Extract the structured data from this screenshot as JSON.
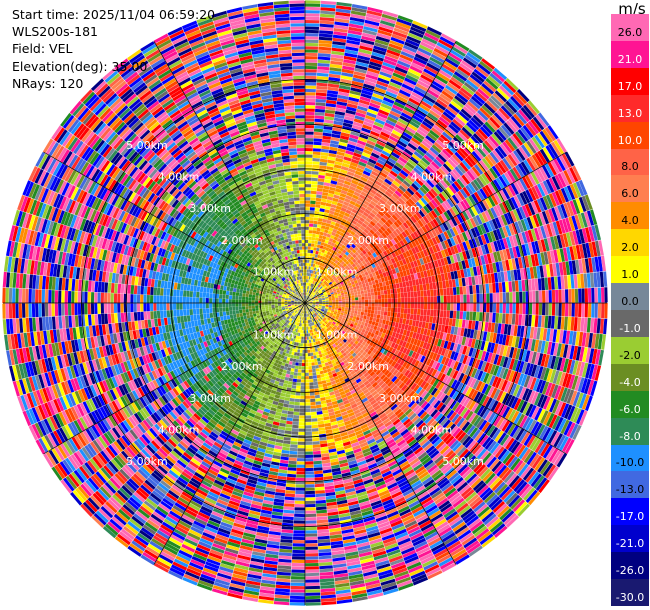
{
  "header": {
    "start_time": "Start time: 2025/11/04 06:59:20",
    "instrument": "WLS200s-181",
    "field": "Field: VEL",
    "elevation": "Elevation(deg): 35.00",
    "nrays": "NRays: 120"
  },
  "colorbar": {
    "unit": "m/s",
    "labels": [
      "26.0",
      "21.0",
      "17.0",
      "13.0",
      "10.0",
      "8.0",
      "6.0",
      "4.0",
      "2.0",
      "1.0",
      "0.0",
      "-1.0",
      "-2.0",
      "-4.0",
      "-6.0",
      "-8.0",
      "-10.0",
      "-13.0",
      "-17.0",
      "-21.0",
      "-26.0",
      "-30.0"
    ],
    "colors": [
      "#ff69b4",
      "#ff1493",
      "#ff0000",
      "#ff2a2a",
      "#ff4500",
      "#ff6347",
      "#ff7f50",
      "#ff8c00",
      "#ffd700",
      "#ffff00",
      "#778899",
      "#696969",
      "#9acd32",
      "#6b8e23",
      "#228b22",
      "#2e8b57",
      "#1e90ff",
      "#4169e1",
      "#0000ff",
      "#0000cd",
      "#000080",
      "#191970"
    ]
  },
  "chart_data": {
    "type": "heatmap",
    "subtype": "polar-ppi",
    "field": "VEL",
    "unit": "m/s",
    "nrays": 120,
    "elevation_deg": 35.0,
    "max_range_km": 5.0,
    "range_ring_labels": [
      "1.00km",
      "1.00km",
      "1.00km",
      "1.00km",
      "2.00km",
      "2.00km",
      "2.00km",
      "2.00km",
      "3.00km",
      "3.00km",
      "3.00km",
      "3.00km",
      "4.00km",
      "4.00km",
      "4.00km",
      "4.00km",
      "5.00km",
      "5.00km",
      "5.00km",
      "5.00km"
    ],
    "range_rings_km": [
      1,
      2,
      3,
      4,
      5
    ],
    "color_levels": [
      26,
      21,
      17,
      13,
      10,
      8,
      6,
      4,
      2,
      1,
      0,
      -1,
      -2,
      -4,
      -6,
      -8,
      -10,
      -13,
      -17,
      -21,
      -26,
      -30
    ],
    "pattern": "coherent dipole within ~2 km: yellow/red (positive) to the east, green/blue (negative) to the west; random noise beyond ~2.5 km"
  }
}
